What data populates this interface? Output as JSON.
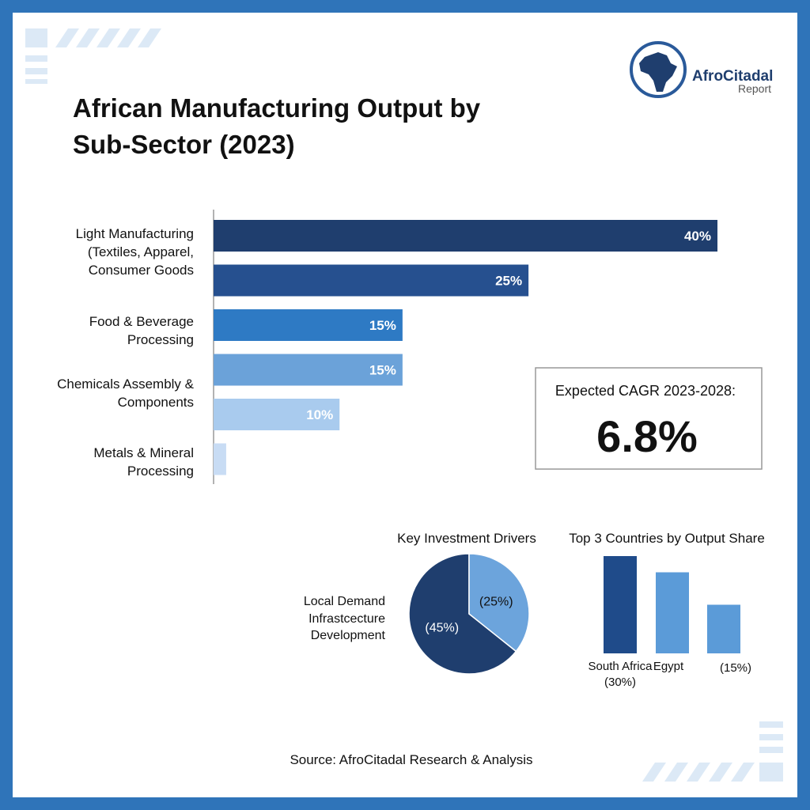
{
  "logo": {
    "name": "AfroCitadal",
    "subtitle": "Report"
  },
  "cagr": {
    "label": "Expected CAGR 2023-2028:",
    "value": 6.8,
    "value_label": "6.8%"
  },
  "source": "Source: AfroCitadal Research & Analysis",
  "chart_data": [
    {
      "type": "bar",
      "orientation": "horizontal",
      "title": "African Manufacturing Output by Sub-Sector (2023)",
      "categories": [
        "Light Manufacturing (Textiles, Apparel, Consumer Goods",
        null,
        "Food & Beverage Processing",
        "Chemicals Assembly & Components",
        null,
        "Metals & Mineral Processing"
      ],
      "values": [
        40,
        25,
        15,
        15,
        10,
        1
      ],
      "value_labels": [
        "40%",
        "25%",
        "15%",
        "15%",
        "10%",
        null
      ],
      "colors": [
        "#1f3e6e",
        "#26508f",
        "#2e7ac4",
        "#6ba2d9",
        "#a9cbee",
        "#c8dcf4"
      ],
      "xlim": [
        0,
        40
      ]
    },
    {
      "type": "pie",
      "title": "Key Investment Drivers",
      "categories": [
        "Local Demand",
        "Infrastcecture Development"
      ],
      "values": [
        45,
        25
      ],
      "value_labels": [
        "(45%)",
        "(25%)"
      ],
      "colors": [
        "#1f3e6e",
        "#6ca4dc"
      ]
    },
    {
      "type": "bar",
      "orientation": "vertical",
      "title": "Top 3 Countries by Output Share",
      "categories": [
        "South Africa",
        "Egypt",
        null
      ],
      "values": [
        30,
        25,
        15
      ],
      "value_labels": [
        "(30%)",
        null,
        "(15%)"
      ],
      "colors": [
        "#1f4b8a",
        "#5b9bd8",
        "#5b9bd8"
      ],
      "ylim": [
        0,
        30
      ]
    }
  ]
}
